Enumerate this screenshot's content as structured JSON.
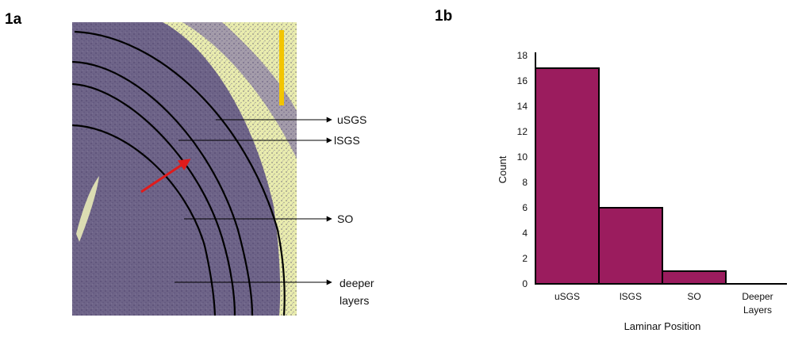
{
  "panel_a": {
    "label": "1a",
    "annotations": [
      {
        "key": "usgs",
        "line1": "uSGS",
        "line2": ""
      },
      {
        "key": "lsgs",
        "line1": "lSGS",
        "line2": ""
      },
      {
        "key": "so",
        "line1": "SO",
        "line2": ""
      },
      {
        "key": "deeper",
        "line1": "deeper",
        "line2": "layers"
      }
    ],
    "colors": {
      "tissue": "#6e6488",
      "background": "#e9ecae",
      "scale_bar": "#f2c500",
      "arrow": "#e01b1b"
    }
  },
  "panel_b": {
    "label": "1b"
  },
  "chart_data": {
    "type": "bar",
    "categories": [
      "uSGS",
      "lSGS",
      "SO",
      "Deeper Layers"
    ],
    "category_lines": [
      [
        "uSGS"
      ],
      [
        "lSGS"
      ],
      [
        "SO"
      ],
      [
        "Deeper",
        "Layers"
      ]
    ],
    "values": [
      17,
      6,
      1,
      0
    ],
    "xlabel": "Laminar Position",
    "ylabel": "Count",
    "ylim": [
      0,
      18
    ],
    "yticks": [
      0,
      2,
      4,
      6,
      8,
      10,
      12,
      14,
      16,
      18
    ],
    "bar_color": "#9b1c5e",
    "grid": false,
    "legend": "none"
  }
}
